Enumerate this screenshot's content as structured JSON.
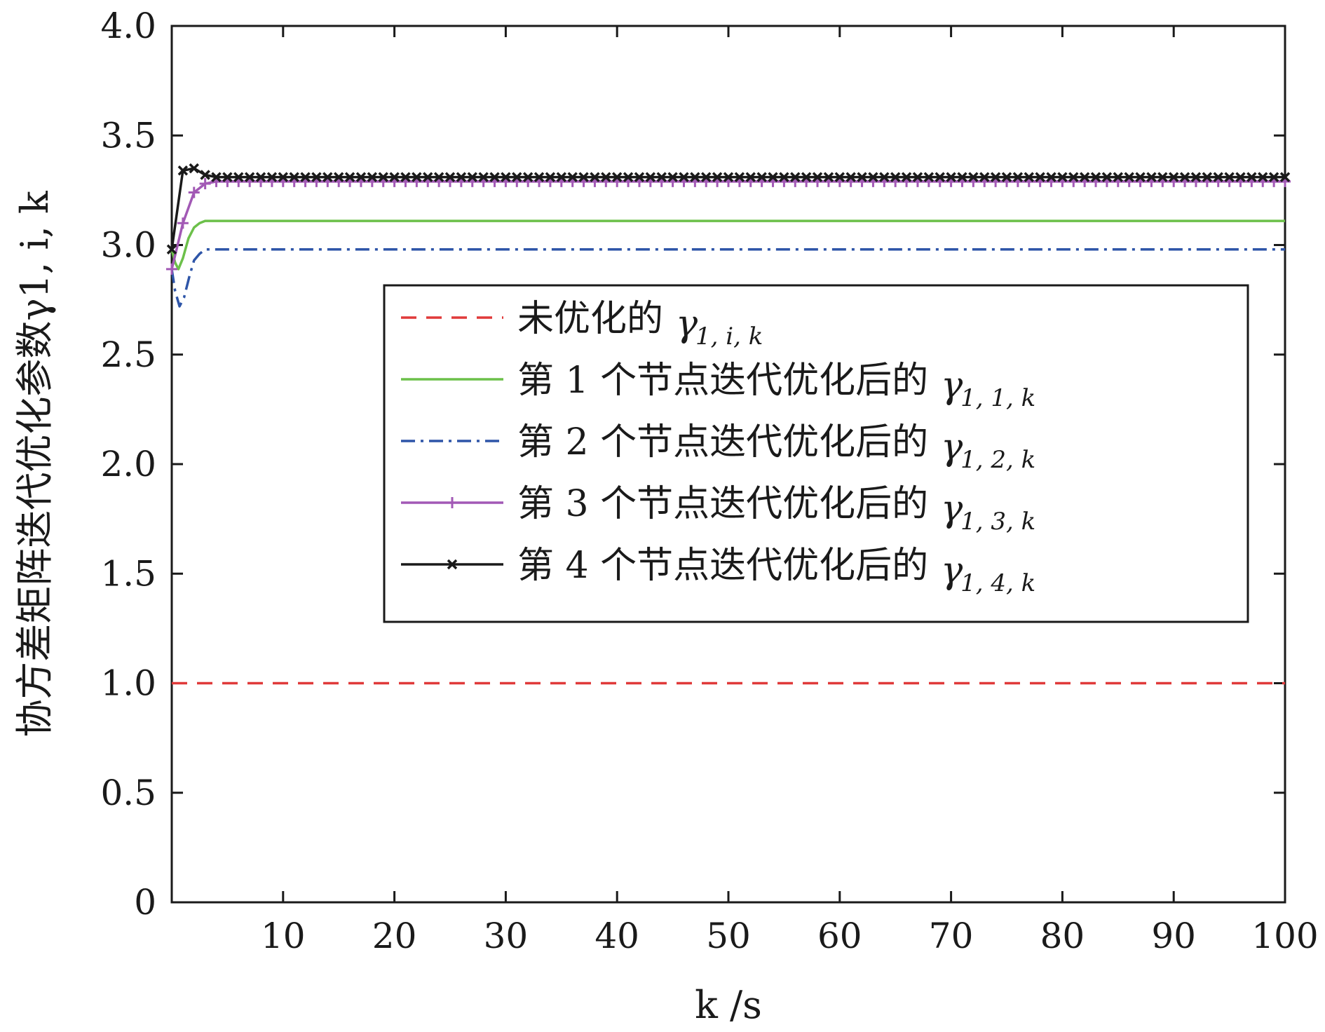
{
  "chart_data": {
    "type": "line",
    "xlabel": "k /s",
    "ylabel": "协方差矩阵迭代优化参数γ1, i, k",
    "xlim": [
      0,
      100
    ],
    "ylim": [
      0,
      4.0
    ],
    "x_ticks": [
      10,
      20,
      30,
      40,
      50,
      60,
      70,
      80,
      90,
      100
    ],
    "x_tick_labels": [
      "10",
      "20",
      "30",
      "40",
      "50",
      "60",
      "70",
      "80",
      "90",
      "100"
    ],
    "y_ticks": [
      0,
      0.5,
      1.0,
      1.5,
      2.0,
      2.5,
      3.0,
      3.5,
      4.0
    ],
    "y_tick_labels": [
      "0",
      "0.5",
      "1.0",
      "1.5",
      "2.0",
      "2.5",
      "3.0",
      "3.5",
      "4.0"
    ],
    "grid": false,
    "legend_position": "center-right",
    "series": [
      {
        "name": "未优化的 γ1, i, k",
        "legend_text": "未优化的",
        "legend_sub": "1, i, k",
        "color": "#e03a3a",
        "style": "dashed",
        "marker": "none",
        "x": [
          0,
          100
        ],
        "y": [
          1.0,
          1.0
        ]
      },
      {
        "name": "第 1 个节点迭代优化后的 γ1, 1, k",
        "legend_text": "第 1 个节点迭代优化后的",
        "legend_sub": "1, 1, k",
        "color": "#6cc04a",
        "style": "solid",
        "marker": "none",
        "x": [
          0,
          0.3,
          0.6,
          1,
          1.5,
          2,
          2.5,
          3,
          4,
          5,
          100
        ],
        "y": [
          2.98,
          2.92,
          2.89,
          2.94,
          3.03,
          3.08,
          3.1,
          3.11,
          3.11,
          3.11,
          3.11
        ]
      },
      {
        "name": "第 2 个节点迭代优化后的 γ1, 2, k",
        "legend_text": "第 2 个节点迭代优化后的",
        "legend_sub": "1, 2, k",
        "color": "#2e55a8",
        "style": "dashdot",
        "marker": "none",
        "x": [
          0,
          0.3,
          0.7,
          1.1,
          1.6,
          2,
          2.5,
          3,
          4,
          5,
          100
        ],
        "y": [
          2.89,
          2.79,
          2.72,
          2.76,
          2.86,
          2.93,
          2.96,
          2.98,
          2.98,
          2.98,
          2.98
        ]
      },
      {
        "name": "第 3 个节点迭代优化后的 γ1, 3, k",
        "legend_text": "第 3 个节点迭代优化后的",
        "legend_sub": "1, 3, k",
        "color": "#a259b5",
        "style": "solid",
        "marker": "plus",
        "x": [
          0,
          1,
          2,
          3,
          4,
          5,
          100
        ],
        "y": [
          2.89,
          3.1,
          3.24,
          3.28,
          3.29,
          3.29,
          3.29
        ]
      },
      {
        "name": "第 4 个节点迭代优化后的 γ1, 4, k",
        "legend_text": "第 4 个节点迭代优化后的",
        "legend_sub": "1, 4, k",
        "color": "#1a1a1a",
        "style": "solid",
        "marker": "x",
        "x": [
          0,
          1,
          2,
          3,
          4,
          5,
          100
        ],
        "y": [
          2.98,
          3.34,
          3.35,
          3.32,
          3.31,
          3.31,
          3.31
        ]
      }
    ]
  }
}
